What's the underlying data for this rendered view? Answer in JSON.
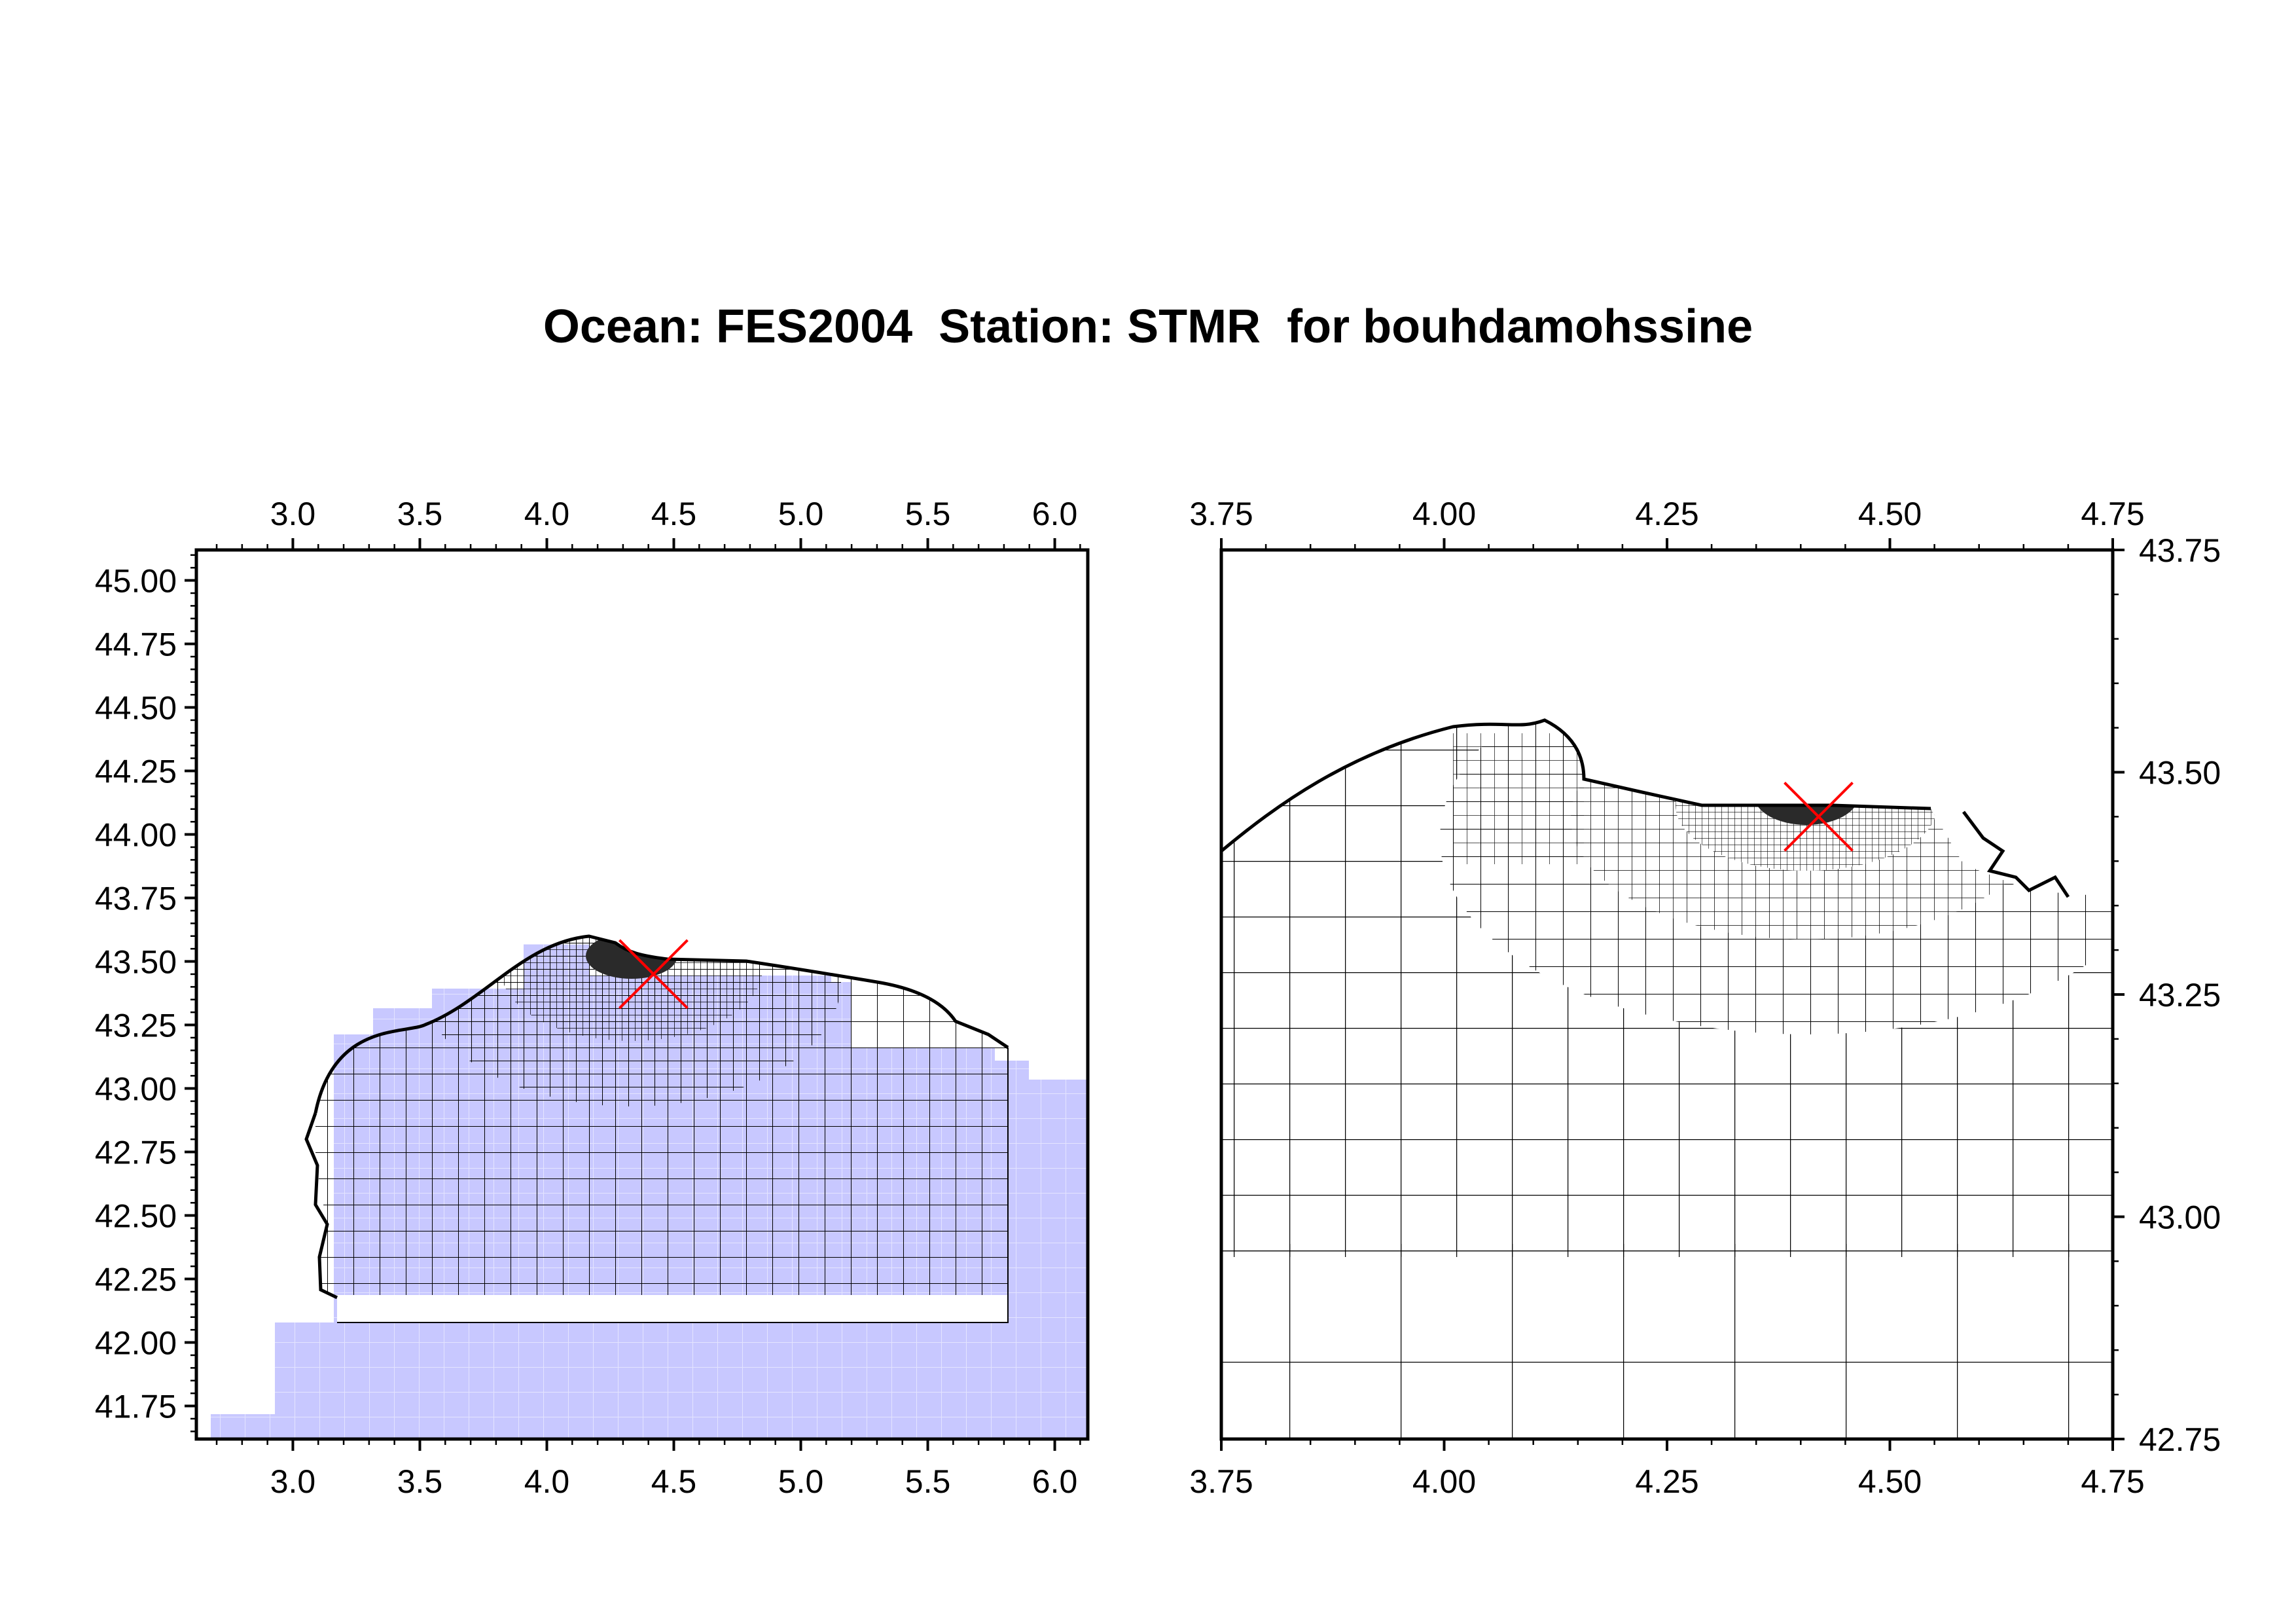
{
  "title": "Ocean: FES2004  Station: STMR  for bouhdamohssine",
  "colors": {
    "ocean_fill": "#c8c8ff",
    "ocean_grid_line": "#e4e4ff",
    "mesh_line": "#000000",
    "dense_mesh": "#2a2a2a",
    "station_marker": "#ff0000"
  },
  "station_marker": {
    "symbol": "x-mark",
    "lon": 4.42,
    "lat": 43.45
  },
  "maps": [
    {
      "name": "overview",
      "lon_range": [
        2.62,
        6.13
      ],
      "lat_range": [
        41.62,
        45.12
      ],
      "x_ticks": [
        "3.0",
        "3.5",
        "4.0",
        "4.5",
        "5.0",
        "5.5",
        "6.0"
      ],
      "x_tick_values": [
        3.0,
        3.5,
        4.0,
        4.5,
        5.0,
        5.5,
        6.0
      ],
      "y_ticks": [
        "41.75",
        "42.00",
        "42.25",
        "42.50",
        "42.75",
        "43.00",
        "43.25",
        "43.50",
        "43.75",
        "44.00",
        "44.25",
        "44.50",
        "44.75",
        "45.00"
      ],
      "y_tick_values": [
        41.75,
        42.0,
        42.25,
        42.5,
        42.75,
        43.0,
        43.25,
        43.5,
        43.75,
        44.0,
        44.25,
        44.5,
        44.75,
        45.0
      ],
      "x_ticks_on": [
        "top",
        "bottom"
      ],
      "y_ticks_on": [
        "left"
      ]
    },
    {
      "name": "zoom",
      "lon_range": [
        3.75,
        4.75
      ],
      "lat_range": [
        42.75,
        43.75
      ],
      "x_ticks": [
        "3.75",
        "4.00",
        "4.25",
        "4.50",
        "4.75"
      ],
      "x_tick_values": [
        3.75,
        4.0,
        4.25,
        4.5,
        4.75
      ],
      "y_ticks": [
        "42.75",
        "43.00",
        "43.25",
        "43.50",
        "43.75"
      ],
      "y_tick_values": [
        42.75,
        43.0,
        43.25,
        43.5,
        43.75
      ],
      "x_ticks_on": [
        "top",
        "bottom"
      ],
      "y_ticks_on": [
        "right"
      ]
    }
  ]
}
